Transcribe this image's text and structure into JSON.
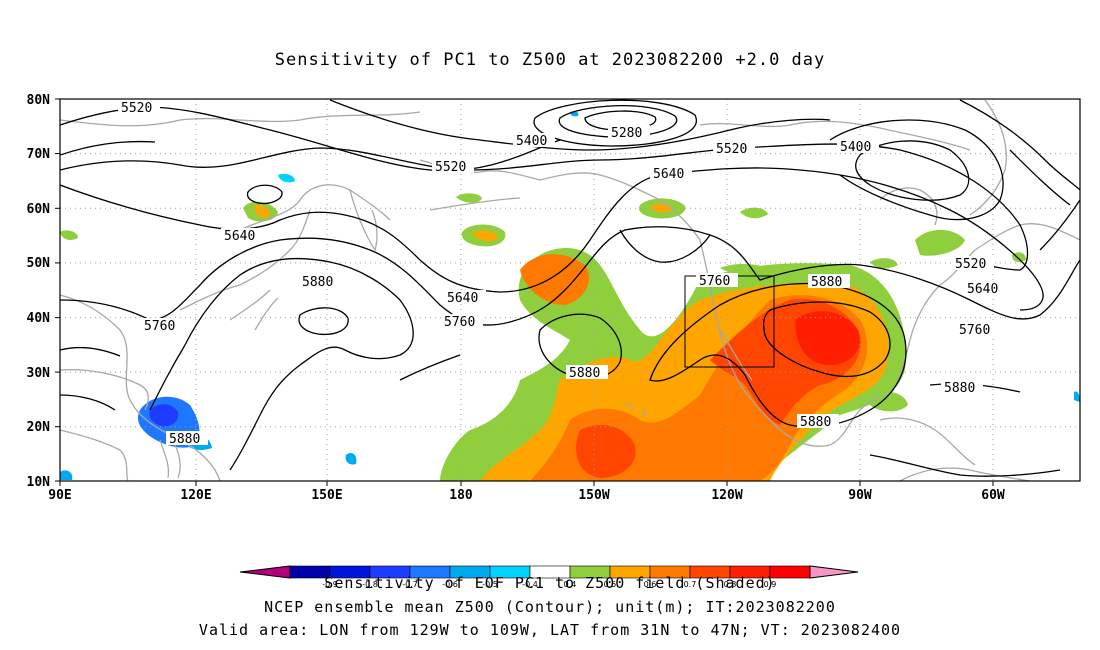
{
  "title": "Sensitivity of PC1 to Z500 at 2023082200 +2.0 day",
  "lat_labels": [
    "80N",
    "70N",
    "60N",
    "50N",
    "40N",
    "30N",
    "20N",
    "10N"
  ],
  "lon_labels": [
    "90E",
    "120E",
    "150E",
    "180",
    "150W",
    "120W",
    "90W",
    "60W"
  ],
  "contour_labels": [
    "5520",
    "5280",
    "5400",
    "5520",
    "5400",
    "5520",
    "5640",
    "5640",
    "5640",
    "5520",
    "5880",
    "5880",
    "5640",
    "5760",
    "5760",
    "5760",
    "5880",
    "5760",
    "5880",
    "5880",
    "5880"
  ],
  "colorbar": {
    "ticks": [
      "-0.9",
      "-0.8",
      "-0.7",
      "-0.6",
      "-0.5",
      "-0.4",
      "0.4",
      "0.5",
      "0.6",
      "0.7",
      "0.8",
      "0.9"
    ],
    "colors": [
      "#b4007f",
      "#0000a8",
      "#0014dc",
      "#1e3cff",
      "#1e78ff",
      "#00aaf0",
      "#00d2ff",
      "#ffffff",
      "#8fce3c",
      "#ffa500",
      "#ff7800",
      "#ff4500",
      "#ff1e00",
      "#ff0000",
      "#f596c8"
    ],
    "title": "Sensitivity of EOF PC1 to Z500 field (Shaded)"
  },
  "caption_line1": "NCEP ensemble mean Z500 (Contour); unit(m); IT:2023082200",
  "caption_line2": "Valid area: LON from 129W to 109W, LAT from 31N to 47N; VT: 2023082400",
  "colors": {
    "coast": "#a8a8a8",
    "contour": "#000000",
    "grid": "#a0a0a0"
  }
}
